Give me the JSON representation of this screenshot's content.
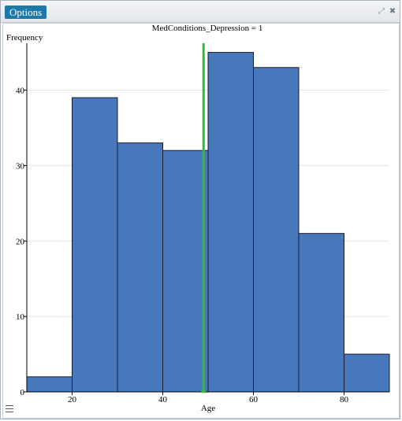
{
  "toolbar": {
    "options_label": "Options"
  },
  "icons": {
    "expand": "expand-icon",
    "close": "close-icon",
    "menu": "menu-icon"
  },
  "chart_data": {
    "type": "bar",
    "title": "MedConditions_Depression = 1",
    "xlabel": "Age",
    "ylabel": "Frequency",
    "bins": [
      {
        "start": 10,
        "end": 20,
        "count": 2
      },
      {
        "start": 20,
        "end": 30,
        "count": 39
      },
      {
        "start": 30,
        "end": 40,
        "count": 33
      },
      {
        "start": 40,
        "end": 50,
        "count": 32
      },
      {
        "start": 50,
        "end": 60,
        "count": 45
      },
      {
        "start": 60,
        "end": 70,
        "count": 43
      },
      {
        "start": 70,
        "end": 80,
        "count": 21
      },
      {
        "start": 80,
        "end": 90,
        "count": 5
      }
    ],
    "xlim": [
      10,
      90
    ],
    "ylim": [
      0,
      46
    ],
    "xticks": [
      "20",
      "40",
      "60",
      "80"
    ],
    "yticks": [
      "0",
      "10",
      "20",
      "30",
      "40"
    ],
    "reference_line_x": 49,
    "colors": {
      "bar": "#4878bc",
      "bar_stroke": "#1a1a2e",
      "reference_line": "#33bb33",
      "grid": "#e6e6e6"
    },
    "grid": true
  }
}
